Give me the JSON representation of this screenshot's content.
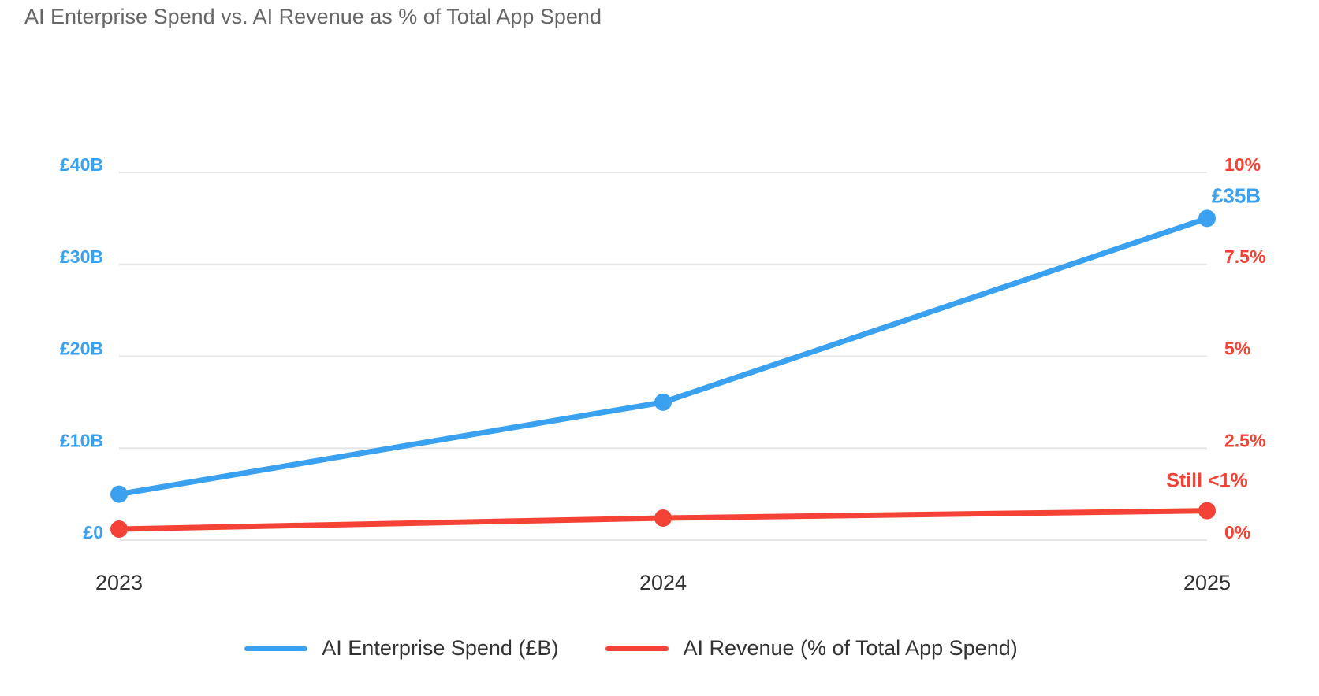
{
  "chart_data": {
    "type": "line",
    "title": "AI Enterprise Spend vs. AI Revenue as % of Total App Spend",
    "categories": [
      "2023",
      "2024",
      "2025"
    ],
    "series": [
      {
        "name": "AI Enterprise Spend (£B)",
        "axis": "left",
        "color": "#3aa0f0",
        "values": [
          5,
          15,
          35
        ]
      },
      {
        "name": "AI Revenue (% of Total App Spend)",
        "axis": "right",
        "color": "#f44336",
        "values": [
          0.3,
          0.6,
          0.8
        ]
      }
    ],
    "y_left": {
      "label": "",
      "ylim": [
        0,
        40
      ],
      "tick_values": [
        0,
        10,
        20,
        30,
        40
      ],
      "tick_labels": [
        "£0",
        "£10B",
        "£20B",
        "£30B",
        "£40B"
      ]
    },
    "y_right": {
      "label": "",
      "ylim": [
        0,
        10
      ],
      "tick_values": [
        0,
        2.5,
        5,
        7.5,
        10
      ],
      "tick_labels": [
        "0%",
        "2.5%",
        "5%",
        "7.5%",
        "10%"
      ]
    },
    "annotations": [
      {
        "series": 0,
        "index": 2,
        "text": "£35B"
      },
      {
        "series": 1,
        "index": 2,
        "text": "Still <1%"
      }
    ],
    "grid": true,
    "legend_position": "bottom"
  }
}
